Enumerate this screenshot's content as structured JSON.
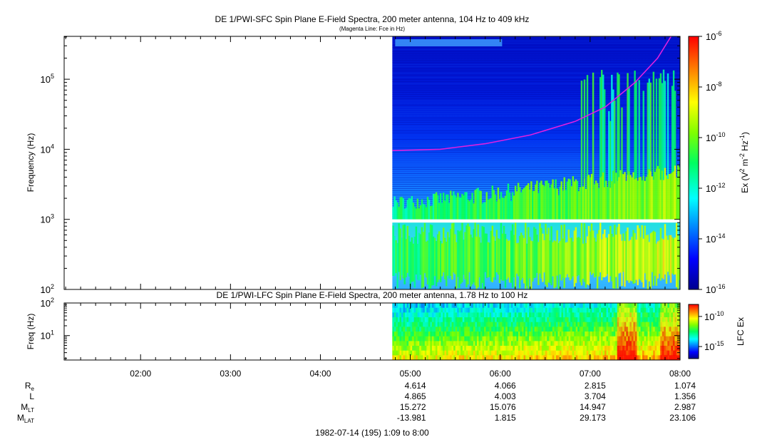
{
  "chart_data": [
    {
      "type": "heatmap",
      "title": "DE 1/PWI-SFC  Spin Plane E-Field Spectra, 200 meter antenna, 104 Hz to 409 kHz",
      "subtitle": "(Magenta Line: Fce in Hz)",
      "ylabel": "Frequency (Hz)",
      "yscale": "log",
      "ylim": [
        100,
        409000
      ],
      "yticks": [
        {
          "base": "10",
          "exp": "2"
        },
        {
          "base": "10",
          "exp": "3"
        },
        {
          "base": "10",
          "exp": "4"
        },
        {
          "base": "10",
          "exp": "5"
        }
      ],
      "colorbar": {
        "label_pre": "Ex (V",
        "label_sup1": "2",
        "label_mid": " m",
        "label_sup2": "-2",
        "label_mid2": " Hz",
        "label_sup3": "-1",
        "label_post": ")",
        "scale": "log",
        "range": [
          1e-16,
          1e-06
        ],
        "ticks": [
          {
            "base": "10",
            "exp": "-6"
          },
          {
            "base": "10",
            "exp": "-8"
          },
          {
            "base": "10",
            "exp": "-10"
          },
          {
            "base": "10",
            "exp": "-12"
          },
          {
            "base": "10",
            "exp": "-14"
          },
          {
            "base": "10",
            "exp": "-16"
          }
        ]
      },
      "data_start": "04:48",
      "data_end": "08:00",
      "fce_line": {
        "color": "#e020e0",
        "points": [
          [
            "04:48",
            9600
          ],
          [
            "05:20",
            10000
          ],
          [
            "05:50",
            12000
          ],
          [
            "06:20",
            16000
          ],
          [
            "06:50",
            25000
          ],
          [
            "07:10",
            40000
          ],
          [
            "07:30",
            90000
          ],
          [
            "07:45",
            200000
          ],
          [
            "07:54",
            409000
          ]
        ]
      }
    },
    {
      "type": "heatmap",
      "title": "DE 1/PWI-LFC  Spin Plane E-Field Spectra, 200 meter antenna, 1.78 Hz to 100 Hz",
      "ylabel": "Freq (Hz)",
      "yscale": "log",
      "ylim": [
        1.78,
        100
      ],
      "yticks": [
        {
          "base": "10",
          "exp": "1",
          "value": 10
        },
        {
          "base": "10",
          "exp": "2",
          "value": 100
        }
      ],
      "colorbar": {
        "label": "LFC Ex",
        "scale": "log",
        "range": [
          1e-17,
          1e-08
        ],
        "ticks": [
          {
            "base": "10",
            "exp": "-10",
            "value": 1e-10
          },
          {
            "base": "10",
            "exp": "-15",
            "value": 1e-15
          }
        ]
      },
      "data_start": "04:48",
      "data_end": "08:00"
    }
  ],
  "time_axis": {
    "start": "01:09",
    "end": "08:00",
    "tick_labels": [
      "02:00",
      "03:00",
      "04:00",
      "05:00",
      "06:00",
      "07:00",
      "08:00"
    ],
    "footer": "1982-07-14 (195) 1:09 to 8:00"
  },
  "ephemeris": {
    "rows": [
      {
        "label": "R",
        "sub": "e",
        "values": [
          "4.614",
          "4.066",
          "2.815",
          "1.074"
        ]
      },
      {
        "label": "L",
        "sub": "",
        "values": [
          "4.865",
          "4.003",
          "3.704",
          "1.356"
        ]
      },
      {
        "label": "M",
        "sub": "LT",
        "values": [
          "15.272",
          "15.076",
          "14.947",
          "2.987"
        ]
      },
      {
        "label": "M",
        "sub": "LAT",
        "values": [
          "-13.981",
          "1.815",
          "29.173",
          "23.106"
        ]
      }
    ],
    "columns": [
      "05:00",
      "06:00",
      "07:00",
      "08:00"
    ]
  }
}
